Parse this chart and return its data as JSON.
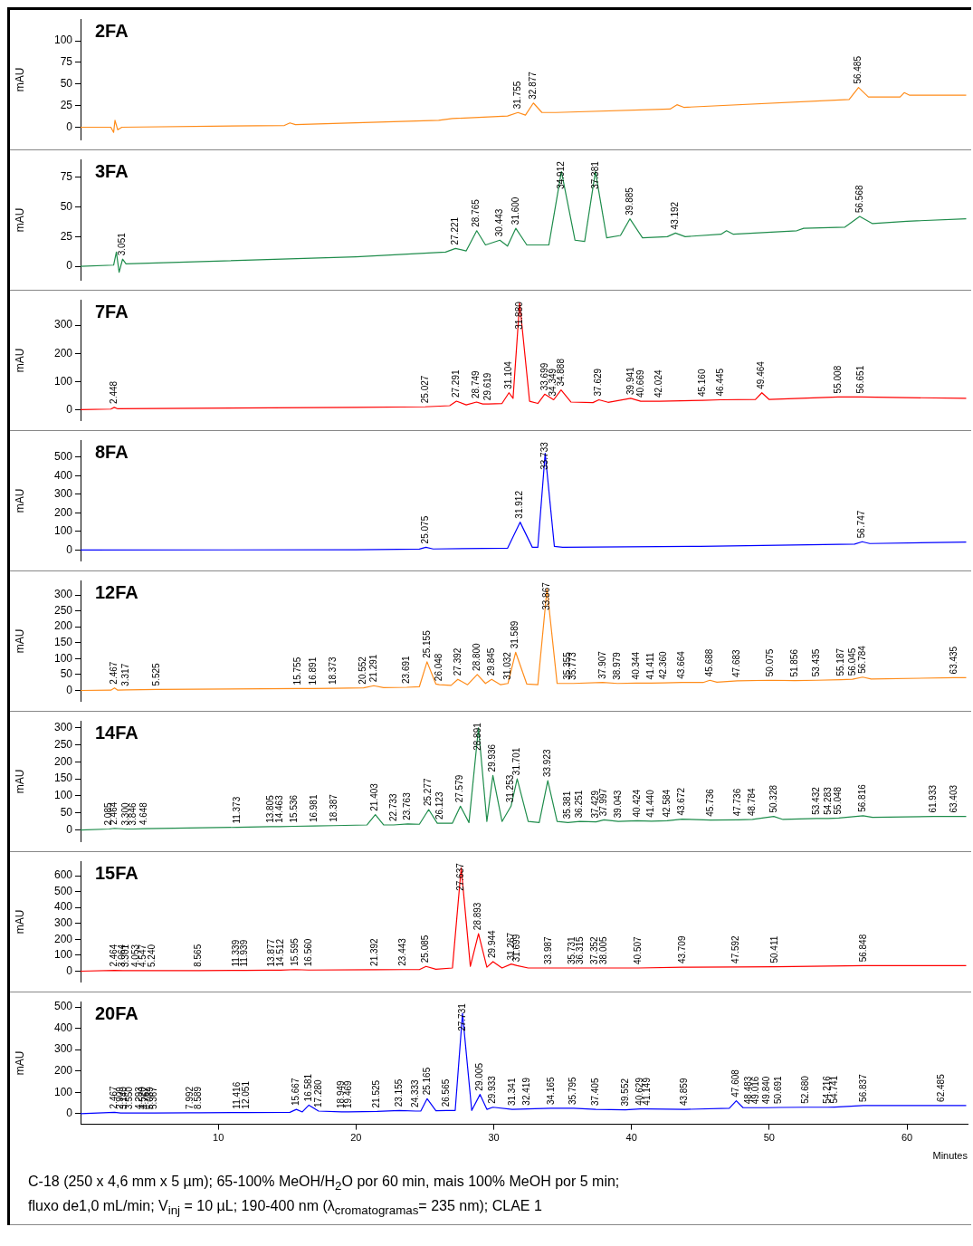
{
  "chart_data": [
    {
      "type": "line",
      "title": "2FA",
      "ylabel": "mAU",
      "color": "#ff8c1a",
      "xlim": [
        0,
        64.4
      ],
      "ylim": [
        -15,
        125
      ],
      "yticks": [
        0,
        25,
        50,
        75,
        100
      ],
      "tick_labels": "y",
      "x": [
        0,
        2.2,
        2.4,
        2.5,
        2.7,
        3,
        14.8,
        15.2,
        15.6,
        26,
        27,
        31,
        31.755,
        32.3,
        32.877,
        33.5,
        34.5,
        42.8,
        43.3,
        43.8,
        55.8,
        56.485,
        57.2,
        59.5,
        59.8,
        60.2,
        64.3
      ],
      "values": [
        0,
        0,
        -6,
        8,
        -3,
        0,
        2,
        5,
        3,
        8,
        10,
        13,
        17,
        14,
        28,
        17,
        17,
        21,
        26,
        23,
        32,
        46,
        35,
        35,
        40,
        37,
        37
      ],
      "annotations": [
        {
          "text": "31.755",
          "x": 31.755,
          "y": 17
        },
        {
          "text": "32.877",
          "x": 32.877,
          "y": 28
        },
        {
          "text": "56.485",
          "x": 56.485,
          "y": 46
        }
      ]
    },
    {
      "type": "line",
      "title": "3FA",
      "ylabel": "mAU",
      "color": "#1e8c4b",
      "xlim": [
        0,
        64.4
      ],
      "ylim": [
        -12,
        90
      ],
      "yticks": [
        0,
        25,
        50,
        75
      ],
      "tick_labels": "y",
      "x": [
        0,
        2.4,
        2.6,
        2.8,
        3.051,
        3.3,
        20,
        26.5,
        27.221,
        28,
        28.765,
        29.4,
        30.443,
        31,
        31.6,
        32.4,
        34,
        34.912,
        35.9,
        36.6,
        37.381,
        38.2,
        39.2,
        39.885,
        40.8,
        42.6,
        43.192,
        43.9,
        46.5,
        46.9,
        47.4,
        52,
        52.5,
        55.5,
        56.568,
        57.5,
        60,
        64.3
      ],
      "values": [
        0,
        1,
        12,
        -5,
        6,
        2,
        8,
        12,
        15,
        13,
        30,
        18,
        22,
        17,
        32,
        18,
        18,
        80,
        22,
        21,
        80,
        24,
        26,
        40,
        24,
        25,
        28,
        25,
        27,
        30,
        27,
        30,
        32,
        33,
        42,
        36,
        38,
        40
      ],
      "annotations": [
        {
          "text": "3.051",
          "x": 3.051,
          "y": 6
        },
        {
          "text": "27.221",
          "x": 27.221,
          "y": 15
        },
        {
          "text": "28.765",
          "x": 28.765,
          "y": 30
        },
        {
          "text": "30.443",
          "x": 30.443,
          "y": 22
        },
        {
          "text": "31.600",
          "x": 31.6,
          "y": 32
        },
        {
          "text": "34.912",
          "x": 34.912,
          "y": 80
        },
        {
          "text": "37.381",
          "x": 37.381,
          "y": 80
        },
        {
          "text": "39.885",
          "x": 39.885,
          "y": 40
        },
        {
          "text": "43.192",
          "x": 43.192,
          "y": 28
        },
        {
          "text": "56.568",
          "x": 56.568,
          "y": 42
        }
      ]
    },
    {
      "type": "line",
      "title": "7FA",
      "ylabel": "mAU",
      "color": "#ff0000",
      "xlim": [
        0,
        64.4
      ],
      "ylim": [
        -40,
        390
      ],
      "yticks": [
        0,
        100,
        200,
        300
      ],
      "tick_labels": "y",
      "x": [
        0,
        2.2,
        2.448,
        2.7,
        20,
        25.027,
        26.8,
        27.291,
        28,
        28.749,
        29.2,
        29.619,
        30.6,
        31.104,
        31.4,
        31.88,
        32.6,
        33.2,
        33.699,
        34.349,
        34.888,
        35.6,
        37.2,
        37.629,
        38.3,
        39.941,
        40.669,
        42.024,
        45.16,
        46.445,
        49,
        49.464,
        50,
        55.008,
        56.651,
        64.3
      ],
      "values": [
        0,
        2,
        8,
        3,
        8,
        10,
        14,
        30,
        17,
        27,
        20,
        20,
        22,
        60,
        40,
        380,
        30,
        22,
        55,
        35,
        70,
        27,
        25,
        35,
        26,
        40,
        30,
        30,
        33,
        35,
        36,
        60,
        36,
        45,
        45,
        40
      ],
      "annotations": [
        {
          "text": "2.448",
          "x": 2.448,
          "y": 8
        },
        {
          "text": "25.027",
          "x": 25.027,
          "y": 10
        },
        {
          "text": "27.291",
          "x": 27.291,
          "y": 30
        },
        {
          "text": "28.749",
          "x": 28.749,
          "y": 27
        },
        {
          "text": "29.619",
          "x": 29.619,
          "y": 20
        },
        {
          "text": "31.104",
          "x": 31.104,
          "y": 60
        },
        {
          "text": "31.880",
          "x": 31.88,
          "y": 380
        },
        {
          "text": "33.699",
          "x": 33.699,
          "y": 55
        },
        {
          "text": "34.349",
          "x": 34.349,
          "y": 35
        },
        {
          "text": "34.888",
          "x": 34.888,
          "y": 70
        },
        {
          "text": "37.629",
          "x": 37.629,
          "y": 35
        },
        {
          "text": "39.941",
          "x": 39.941,
          "y": 40
        },
        {
          "text": "40.669",
          "x": 40.669,
          "y": 30
        },
        {
          "text": "42.024",
          "x": 42.024,
          "y": 30
        },
        {
          "text": "45.160",
          "x": 45.16,
          "y": 33
        },
        {
          "text": "46.445",
          "x": 46.445,
          "y": 35
        },
        {
          "text": "49.464",
          "x": 49.464,
          "y": 60
        },
        {
          "text": "55.008",
          "x": 55.008,
          "y": 45
        },
        {
          "text": "56.651",
          "x": 56.651,
          "y": 45
        }
      ]
    },
    {
      "type": "line",
      "title": "8FA",
      "ylabel": "mAU",
      "color": "#0000ff",
      "xlim": [
        0,
        64.4
      ],
      "ylim": [
        -60,
        590
      ],
      "yticks": [
        0,
        100,
        200,
        300,
        400,
        500
      ],
      "tick_labels": "y",
      "x": [
        0,
        20,
        24.6,
        25.075,
        25.6,
        31,
        31.912,
        32.8,
        33.2,
        33.733,
        34.4,
        35,
        45,
        56.2,
        56.747,
        57.3,
        64.3
      ],
      "values": [
        0,
        2,
        5,
        15,
        6,
        10,
        150,
        15,
        15,
        520,
        20,
        15,
        20,
        32,
        45,
        35,
        43
      ],
      "annotations": [
        {
          "text": "25.075",
          "x": 25.075,
          "y": 15
        },
        {
          "text": "31.912",
          "x": 31.912,
          "y": 150
        },
        {
          "text": "33.733",
          "x": 33.733,
          "y": 520
        },
        {
          "text": "56.747",
          "x": 56.747,
          "y": 45
        }
      ]
    },
    {
      "type": "line",
      "title": "12FA",
      "ylabel": "mAU",
      "color": "#ff8c1a",
      "xlim": [
        0,
        64.4
      ],
      "ylim": [
        -35,
        345
      ],
      "yticks": [
        0,
        50,
        100,
        150,
        200,
        250,
        300
      ],
      "tick_labels": "y",
      "x": [
        0,
        2.2,
        2.467,
        2.7,
        3.317,
        5.525,
        15.755,
        16.891,
        18.373,
        20.552,
        21.291,
        22,
        23.691,
        24.6,
        25.155,
        25.8,
        26.048,
        26.9,
        27.392,
        28.1,
        28.8,
        29.4,
        29.845,
        30.5,
        31.032,
        31.589,
        32.4,
        33.2,
        33.867,
        34.6,
        35.355,
        35.773,
        37.907,
        38.979,
        40.344,
        41.411,
        42.36,
        43.664,
        45.2,
        45.688,
        46.2,
        47.683,
        50.075,
        51.856,
        53.435,
        55.187,
        56.045,
        56.784,
        57.4,
        63.435,
        64.3
      ],
      "values": [
        0,
        1,
        8,
        1,
        2,
        3,
        6,
        6,
        7,
        8,
        15,
        9,
        10,
        12,
        90,
        20,
        18,
        16,
        35,
        18,
        50,
        22,
        35,
        18,
        22,
        120,
        20,
        18,
        320,
        22,
        22,
        22,
        25,
        22,
        23,
        23,
        24,
        25,
        25,
        32,
        26,
        30,
        32,
        31,
        32,
        34,
        35,
        42,
        36,
        40,
        40
      ],
      "annotations": [
        {
          "text": "2.467",
          "x": 2.467,
          "y": 8
        },
        {
          "text": "3.317",
          "x": 3.317,
          "y": 2
        },
        {
          "text": "5.525",
          "x": 5.525,
          "y": 3
        },
        {
          "text": "15.755",
          "x": 15.755,
          "y": 6
        },
        {
          "text": "16.891",
          "x": 16.891,
          "y": 6
        },
        {
          "text": "18.373",
          "x": 18.373,
          "y": 7
        },
        {
          "text": "20.552",
          "x": 20.552,
          "y": 8
        },
        {
          "text": "21.291",
          "x": 21.291,
          "y": 15
        },
        {
          "text": "23.691",
          "x": 23.691,
          "y": 10
        },
        {
          "text": "25.155",
          "x": 25.155,
          "y": 90
        },
        {
          "text": "26.048",
          "x": 26.048,
          "y": 18
        },
        {
          "text": "27.392",
          "x": 27.392,
          "y": 35
        },
        {
          "text": "28.800",
          "x": 28.8,
          "y": 50
        },
        {
          "text": "29.845",
          "x": 29.845,
          "y": 35
        },
        {
          "text": "31.032",
          "x": 31.032,
          "y": 22
        },
        {
          "text": "31.589",
          "x": 31.589,
          "y": 120
        },
        {
          "text": "33.867",
          "x": 33.867,
          "y": 320
        },
        {
          "text": "35.355",
          "x": 35.355,
          "y": 22
        },
        {
          "text": "35.773",
          "x": 35.773,
          "y": 22
        },
        {
          "text": "37.907",
          "x": 37.907,
          "y": 25
        },
        {
          "text": "38.979",
          "x": 38.979,
          "y": 22
        },
        {
          "text": "40.344",
          "x": 40.344,
          "y": 23
        },
        {
          "text": "41.411",
          "x": 41.411,
          "y": 23
        },
        {
          "text": "42.360",
          "x": 42.36,
          "y": 24
        },
        {
          "text": "43.664",
          "x": 43.664,
          "y": 25
        },
        {
          "text": "45.688",
          "x": 45.688,
          "y": 32
        },
        {
          "text": "47.683",
          "x": 47.683,
          "y": 30
        },
        {
          "text": "50.075",
          "x": 50.075,
          "y": 32
        },
        {
          "text": "51.856",
          "x": 51.856,
          "y": 31
        },
        {
          "text": "53.435",
          "x": 53.435,
          "y": 32
        },
        {
          "text": "55.187",
          "x": 55.187,
          "y": 34
        },
        {
          "text": "56.045",
          "x": 56.045,
          "y": 35
        },
        {
          "text": "56.784",
          "x": 56.784,
          "y": 42
        },
        {
          "text": "63.435",
          "x": 63.435,
          "y": 40
        }
      ]
    },
    {
      "type": "line",
      "title": "14FA",
      "ylabel": "mAU",
      "color": "#1e8c4b",
      "xlim": [
        0,
        64.4
      ],
      "ylim": [
        -35,
        320
      ],
      "yticks": [
        0,
        50,
        100,
        150,
        200,
        250,
        300
      ],
      "tick_labels": "y",
      "x": [
        0,
        2.085,
        2.464,
        3.3,
        3.846,
        4.648,
        11.373,
        13.805,
        14.463,
        15.536,
        16.981,
        18.387,
        20.8,
        21.403,
        22,
        22.733,
        23.763,
        24.6,
        25.277,
        25.9,
        26.123,
        27,
        27.579,
        28.2,
        28.891,
        29.5,
        29.936,
        30.6,
        31.253,
        31.701,
        32.5,
        33.3,
        33.923,
        34.6,
        35.381,
        36.251,
        37.429,
        37.997,
        39.043,
        40.424,
        41.44,
        42.584,
        43.672,
        45.736,
        47.736,
        48.784,
        50.328,
        51,
        53.432,
        54.283,
        55.048,
        56.816,
        57.5,
        61.933,
        63.403,
        64.3
      ],
      "values": [
        0,
        3,
        5,
        3,
        3,
        4,
        8,
        10,
        10,
        11,
        12,
        13,
        15,
        45,
        15,
        15,
        18,
        17,
        60,
        20,
        20,
        20,
        70,
        22,
        300,
        25,
        160,
        25,
        70,
        150,
        25,
        22,
        145,
        25,
        22,
        25,
        24,
        30,
        25,
        27,
        26,
        27,
        32,
        29,
        30,
        31,
        40,
        31,
        34,
        34,
        35,
        42,
        37,
        40,
        40,
        40
      ],
      "annotations": [
        {
          "text": "2.085",
          "x": 2.085,
          "y": 3
        },
        {
          "text": "2.464",
          "x": 2.464,
          "y": 5
        },
        {
          "text": "3.300",
          "x": 3.3,
          "y": 3
        },
        {
          "text": "3.846",
          "x": 3.846,
          "y": 3
        },
        {
          "text": "4.648",
          "x": 4.648,
          "y": 4
        },
        {
          "text": "11.373",
          "x": 11.373,
          "y": 8
        },
        {
          "text": "13.805",
          "x": 13.805,
          "y": 10
        },
        {
          "text": "14.463",
          "x": 14.463,
          "y": 10
        },
        {
          "text": "15.536",
          "x": 15.536,
          "y": 11
        },
        {
          "text": "16.981",
          "x": 16.981,
          "y": 12
        },
        {
          "text": "18.387",
          "x": 18.387,
          "y": 13
        },
        {
          "text": "21.403",
          "x": 21.403,
          "y": 45
        },
        {
          "text": "22.733",
          "x": 22.733,
          "y": 15
        },
        {
          "text": "23.763",
          "x": 23.763,
          "y": 18
        },
        {
          "text": "25.277",
          "x": 25.277,
          "y": 60
        },
        {
          "text": "26.123",
          "x": 26.123,
          "y": 20
        },
        {
          "text": "27.579",
          "x": 27.579,
          "y": 70
        },
        {
          "text": "28.891",
          "x": 28.891,
          "y": 300
        },
        {
          "text": "29.936",
          "x": 29.936,
          "y": 160
        },
        {
          "text": "31.253",
          "x": 31.253,
          "y": 70
        },
        {
          "text": "31.701",
          "x": 31.701,
          "y": 150
        },
        {
          "text": "33.923",
          "x": 33.923,
          "y": 145
        },
        {
          "text": "35.381",
          "x": 35.381,
          "y": 22
        },
        {
          "text": "36.251",
          "x": 36.251,
          "y": 25
        },
        {
          "text": "37.429",
          "x": 37.429,
          "y": 24
        },
        {
          "text": "37.997",
          "x": 37.997,
          "y": 30
        },
        {
          "text": "39.043",
          "x": 39.043,
          "y": 25
        },
        {
          "text": "40.424",
          "x": 40.424,
          "y": 27
        },
        {
          "text": "41.440",
          "x": 41.44,
          "y": 26
        },
        {
          "text": "42.584",
          "x": 42.584,
          "y": 27
        },
        {
          "text": "43.672",
          "x": 43.672,
          "y": 32
        },
        {
          "text": "45.736",
          "x": 45.736,
          "y": 29
        },
        {
          "text": "47.736",
          "x": 47.736,
          "y": 30
        },
        {
          "text": "48.784",
          "x": 48.784,
          "y": 31
        },
        {
          "text": "50.328",
          "x": 50.328,
          "y": 40
        },
        {
          "text": "53.432",
          "x": 53.432,
          "y": 34
        },
        {
          "text": "54.283",
          "x": 54.283,
          "y": 34
        },
        {
          "text": "55.048",
          "x": 55.048,
          "y": 35
        },
        {
          "text": "56.816",
          "x": 56.816,
          "y": 42
        },
        {
          "text": "61.933",
          "x": 61.933,
          "y": 40
        },
        {
          "text": "63.403",
          "x": 63.403,
          "y": 40
        }
      ]
    },
    {
      "type": "line",
      "title": "15FA",
      "ylabel": "mAU",
      "color": "#ff0000",
      "xlim": [
        0,
        64.4
      ],
      "ylim": [
        -70,
        690
      ],
      "yticks": [
        0,
        100,
        200,
        300,
        400,
        500,
        600
      ],
      "tick_labels": "y",
      "x": [
        0,
        2.464,
        3.064,
        3.301,
        4.053,
        4.547,
        5.24,
        8.565,
        11.339,
        11.939,
        13.877,
        14.512,
        15.595,
        16.56,
        21.392,
        23.443,
        24.6,
        25.085,
        25.8,
        27,
        27.637,
        28.3,
        28.893,
        29.5,
        29.944,
        30.6,
        31.267,
        31.699,
        32.5,
        33.987,
        35.731,
        36.315,
        37.352,
        38.005,
        40.507,
        43.709,
        47.592,
        50.411,
        56.848,
        64.3
      ],
      "values": [
        0,
        5,
        3,
        3,
        3,
        3,
        3,
        4,
        5,
        5,
        6,
        6,
        10,
        7,
        9,
        10,
        10,
        30,
        12,
        20,
        650,
        30,
        235,
        25,
        60,
        20,
        45,
        35,
        20,
        20,
        20,
        20,
        20,
        20,
        20,
        25,
        26,
        28,
        35,
        35
      ],
      "annotations": [
        {
          "text": "2.464",
          "x": 2.464,
          "y": 5
        },
        {
          "text": "3.064",
          "x": 3.064,
          "y": 3
        },
        {
          "text": "3.301",
          "x": 3.301,
          "y": 3
        },
        {
          "text": "4.053",
          "x": 4.053,
          "y": 3
        },
        {
          "text": "4.547",
          "x": 4.547,
          "y": 3
        },
        {
          "text": "5.240",
          "x": 5.24,
          "y": 3
        },
        {
          "text": "8.565",
          "x": 8.565,
          "y": 4
        },
        {
          "text": "11.339",
          "x": 11.339,
          "y": 5
        },
        {
          "text": "11.939",
          "x": 11.939,
          "y": 5
        },
        {
          "text": "13.877",
          "x": 13.877,
          "y": 6
        },
        {
          "text": "14.512",
          "x": 14.512,
          "y": 6
        },
        {
          "text": "15.595",
          "x": 15.595,
          "y": 10
        },
        {
          "text": "16.560",
          "x": 16.56,
          "y": 7
        },
        {
          "text": "21.392",
          "x": 21.392,
          "y": 9
        },
        {
          "text": "23.443",
          "x": 23.443,
          "y": 10
        },
        {
          "text": "25.085",
          "x": 25.085,
          "y": 30
        },
        {
          "text": "27.637",
          "x": 27.637,
          "y": 650
        },
        {
          "text": "28.893",
          "x": 28.893,
          "y": 235
        },
        {
          "text": "29.944",
          "x": 29.944,
          "y": 60
        },
        {
          "text": "31.267",
          "x": 31.267,
          "y": 45
        },
        {
          "text": "31.699",
          "x": 31.699,
          "y": 35
        },
        {
          "text": "33.987",
          "x": 33.987,
          "y": 20
        },
        {
          "text": "35.731",
          "x": 35.731,
          "y": 20
        },
        {
          "text": "36.315",
          "x": 36.315,
          "y": 20
        },
        {
          "text": "37.352",
          "x": 37.352,
          "y": 20
        },
        {
          "text": "38.005",
          "x": 38.005,
          "y": 20
        },
        {
          "text": "40.507",
          "x": 40.507,
          "y": 20
        },
        {
          "text": "43.709",
          "x": 43.709,
          "y": 25
        },
        {
          "text": "47.592",
          "x": 47.592,
          "y": 26
        },
        {
          "text": "50.411",
          "x": 50.411,
          "y": 28
        },
        {
          "text": "56.848",
          "x": 56.848,
          "y": 35
        }
      ]
    },
    {
      "type": "line",
      "title": "20FA",
      "ylabel": "mAU",
      "xlabel": "Minutes",
      "color": "#0000ff",
      "xlim": [
        0,
        64.4
      ],
      "xticks": [
        10,
        20,
        30,
        40,
        50,
        60
      ],
      "ylim": [
        -50,
        525
      ],
      "yticks": [
        0,
        100,
        200,
        300,
        400,
        500
      ],
      "x": [
        0,
        2.467,
        2.909,
        3.14,
        3.55,
        4.293,
        4.52,
        4.767,
        5.089,
        5.367,
        7.992,
        8.589,
        11.416,
        12.051,
        15.2,
        15.667,
        16.1,
        16.581,
        17.28,
        18.949,
        19.469,
        21.525,
        23.155,
        24.333,
        24.7,
        25.165,
        25.8,
        26.565,
        27.2,
        27.731,
        28.4,
        29.005,
        29.5,
        29.933,
        31.341,
        32.419,
        34.165,
        35.795,
        37.405,
        39.552,
        40.629,
        41.149,
        43.859,
        47.1,
        47.608,
        48.1,
        48.483,
        49.016,
        49.84,
        50.691,
        52.68,
        54.216,
        54.741,
        56.837,
        62.485,
        64.3
      ],
      "values": [
        0,
        6,
        3,
        3,
        3,
        3,
        3,
        3,
        3,
        3,
        4,
        4,
        5,
        5,
        6,
        20,
        8,
        40,
        12,
        8,
        8,
        10,
        15,
        12,
        12,
        70,
        14,
        15,
        15,
        470,
        15,
        90,
        20,
        30,
        20,
        22,
        25,
        25,
        20,
        18,
        22,
        22,
        20,
        25,
        60,
        28,
        28,
        28,
        28,
        29,
        30,
        30,
        31,
        38,
        38,
        38
      ],
      "annotations": [
        {
          "text": "2.467",
          "x": 2.467,
          "y": 6
        },
        {
          "text": "2.909",
          "x": 2.909,
          "y": 3
        },
        {
          "text": "3.140",
          "x": 3.14,
          "y": 3
        },
        {
          "text": "3.550",
          "x": 3.55,
          "y": 3
        },
        {
          "text": "4.293",
          "x": 4.293,
          "y": 3
        },
        {
          "text": "4.520",
          "x": 4.52,
          "y": 3
        },
        {
          "text": "4.767",
          "x": 4.767,
          "y": 3
        },
        {
          "text": "5.089",
          "x": 5.089,
          "y": 3
        },
        {
          "text": "5.367",
          "x": 5.367,
          "y": 3
        },
        {
          "text": "7.992",
          "x": 7.992,
          "y": 4
        },
        {
          "text": "8.589",
          "x": 8.589,
          "y": 4
        },
        {
          "text": "11.416",
          "x": 11.416,
          "y": 5
        },
        {
          "text": "12.051",
          "x": 12.051,
          "y": 5
        },
        {
          "text": "15.667",
          "x": 15.667,
          "y": 20
        },
        {
          "text": "16.581",
          "x": 16.581,
          "y": 40
        },
        {
          "text": "17.280",
          "x": 17.28,
          "y": 12
        },
        {
          "text": "18.949",
          "x": 18.949,
          "y": 8
        },
        {
          "text": "19.469",
          "x": 19.469,
          "y": 8
        },
        {
          "text": "21.525",
          "x": 21.525,
          "y": 10
        },
        {
          "text": "23.155",
          "x": 23.155,
          "y": 15
        },
        {
          "text": "24.333",
          "x": 24.333,
          "y": 12
        },
        {
          "text": "25.165",
          "x": 25.165,
          "y": 70
        },
        {
          "text": "26.565",
          "x": 26.565,
          "y": 15
        },
        {
          "text": "27.731",
          "x": 27.731,
          "y": 470
        },
        {
          "text": "29.005",
          "x": 29.005,
          "y": 90
        },
        {
          "text": "29.933",
          "x": 29.933,
          "y": 30
        },
        {
          "text": "31.341",
          "x": 31.341,
          "y": 20
        },
        {
          "text": "32.419",
          "x": 32.419,
          "y": 22
        },
        {
          "text": "34.165",
          "x": 34.165,
          "y": 25
        },
        {
          "text": "35.795",
          "x": 35.795,
          "y": 25
        },
        {
          "text": "37.405",
          "x": 37.405,
          "y": 20
        },
        {
          "text": "39.552",
          "x": 39.552,
          "y": 18
        },
        {
          "text": "40.629",
          "x": 40.629,
          "y": 22
        },
        {
          "text": "41.149",
          "x": 41.149,
          "y": 22
        },
        {
          "text": "43.859",
          "x": 43.859,
          "y": 20
        },
        {
          "text": "47.608",
          "x": 47.608,
          "y": 60
        },
        {
          "text": "48.483",
          "x": 48.483,
          "y": 28
        },
        {
          "text": "49.016",
          "x": 49.016,
          "y": 28
        },
        {
          "text": "49.840",
          "x": 49.84,
          "y": 28
        },
        {
          "text": "50.691",
          "x": 50.691,
          "y": 29
        },
        {
          "text": "52.680",
          "x": 52.68,
          "y": 30
        },
        {
          "text": "54.216",
          "x": 54.216,
          "y": 30
        },
        {
          "text": "54.741",
          "x": 54.741,
          "y": 31
        },
        {
          "text": "56.837",
          "x": 56.837,
          "y": 38
        },
        {
          "text": "62.485",
          "x": 62.485,
          "y": 38
        },
        "C-18 (250 x 4,6 mm x 5 µm); 65-100% MeOH/H$_{2}$O por 60 min, mais 100% MeOH por 5 min;",
        "fluxo de1,0 mL/min; V$_{inj}$ = 10 µL; 190-400 nm (λ$_{cromatogramas}$= 235 nm); CLAE 1"
      ]
    }
  ]
}
